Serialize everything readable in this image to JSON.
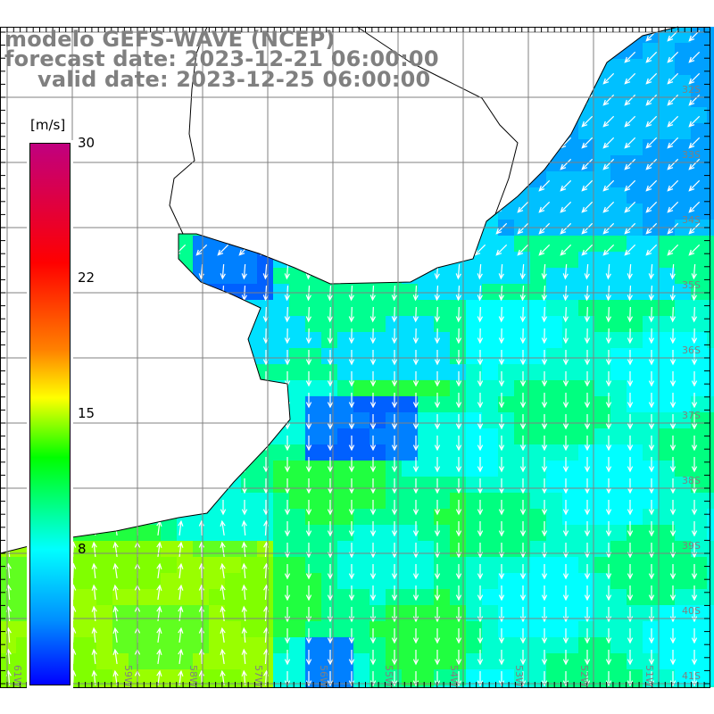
{
  "header": {
    "model": "modelo GEFS-WAVE (NCEP)",
    "forecast_date": "forecast date: 2023-12-21 06:00:00",
    "valid_date": "valid date: 2023-12-25 06:00:00"
  },
  "colorbar": {
    "unit": "[m/s]",
    "labels": [
      "30",
      "22",
      "15",
      "8"
    ]
  },
  "axes": {
    "longitude_labels": [
      "61W",
      "60W",
      "59W",
      "58W",
      "57W",
      "56W",
      "55W",
      "54W",
      "53W",
      "52W",
      "51W"
    ],
    "latitude_labels": [
      "32S",
      "33S",
      "34S",
      "35S",
      "36S",
      "37S",
      "38S",
      "39S",
      "40S",
      "41S"
    ]
  },
  "colors": {
    "land": "#ffffff",
    "grid": "#808080",
    "text": "#808080",
    "arrows": "#ffffff"
  }
}
